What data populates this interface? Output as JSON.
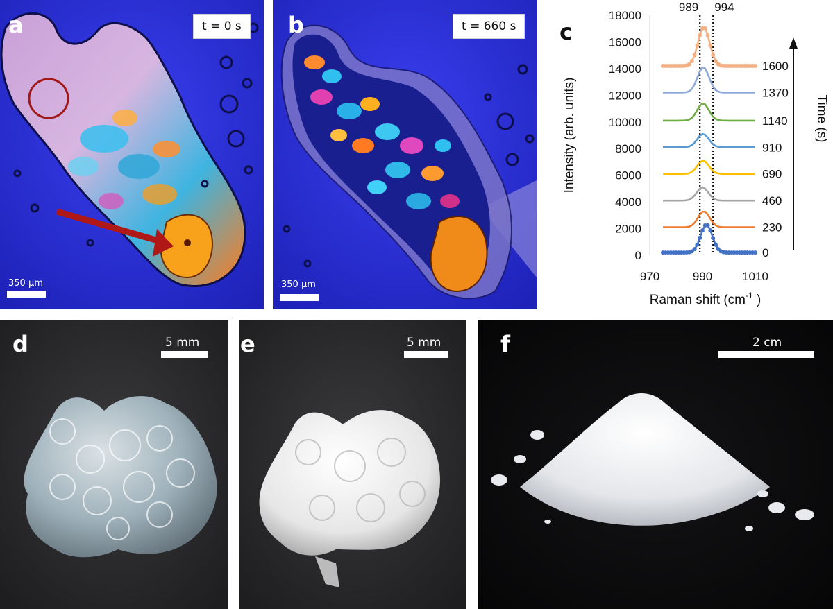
{
  "panels": {
    "a": {
      "label": "a",
      "time": "t = 0 s",
      "scale": "350 µm"
    },
    "b": {
      "label": "b",
      "time": "t = 660 s",
      "scale": "350 µm"
    },
    "c": {
      "label": "c"
    },
    "d": {
      "label": "d",
      "scale": "5 mm"
    },
    "e": {
      "label": "e",
      "scale": "5 mm"
    },
    "f": {
      "label": "f",
      "scale": "2 cm"
    }
  },
  "colors": {
    "micro_bg": "#2a2fd8",
    "photo_bg": "#2a2a2c",
    "arrow": "#b01818"
  },
  "chart_data": {
    "type": "line",
    "title": "",
    "xlabel": "Raman shift (cm",
    "xlabel_sup": "-1",
    "xlabel_close": " )",
    "ylabel": "Intensity (arb. units)",
    "right_label": "Time (s)",
    "xlim": [
      970,
      1010
    ],
    "ylim": [
      0,
      18000
    ],
    "xticks": [
      970,
      990,
      1010
    ],
    "yticks": [
      0,
      2000,
      4000,
      6000,
      8000,
      10000,
      12000,
      14000,
      16000,
      18000
    ],
    "vlines": [
      {
        "x": 989,
        "label": "989"
      },
      {
        "x": 994,
        "label": "994"
      }
    ],
    "grid": false,
    "series": [
      {
        "name": "0",
        "color": "#4472c4",
        "markers": true,
        "baseline": 200,
        "center": 991.5,
        "amp": 2100,
        "width": 2.2
      },
      {
        "name": "230",
        "color": "#ed7d31",
        "markers": false,
        "baseline": 2100,
        "center": 990.5,
        "amp": 1200,
        "width": 2.2
      },
      {
        "name": "460",
        "color": "#a5a5a5",
        "markers": false,
        "baseline": 4100,
        "center": 990.0,
        "amp": 1000,
        "width": 2.2
      },
      {
        "name": "690",
        "color": "#ffc000",
        "markers": false,
        "baseline": 6100,
        "center": 990.2,
        "amp": 1000,
        "width": 2.2
      },
      {
        "name": "910",
        "color": "#5b9bd5",
        "markers": false,
        "baseline": 8100,
        "center": 990.2,
        "amp": 1000,
        "width": 2.2
      },
      {
        "name": "1140",
        "color": "#70ad47",
        "markers": false,
        "baseline": 10100,
        "center": 990.2,
        "amp": 1300,
        "width": 2.2
      },
      {
        "name": "1370",
        "color": "#8eaadb",
        "markers": false,
        "baseline": 12200,
        "center": 990.3,
        "amp": 1900,
        "width": 2.2
      },
      {
        "name": "1600",
        "color": "#f4b183",
        "markers": true,
        "baseline": 14200,
        "center": 990.5,
        "amp": 2900,
        "width": 2.2
      }
    ]
  }
}
